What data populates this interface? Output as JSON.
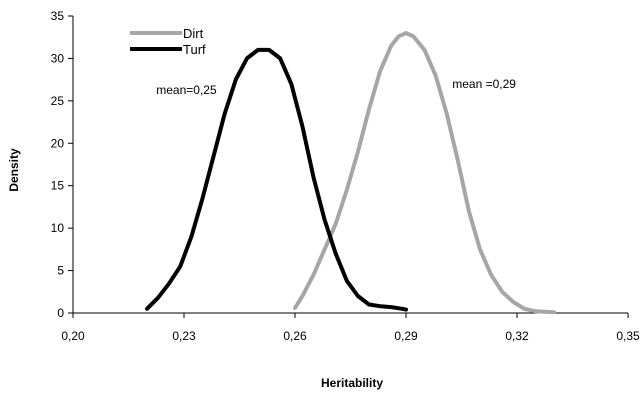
{
  "chart_data": {
    "type": "line",
    "title": "",
    "xlabel": "Heritability",
    "ylabel": "Density",
    "xlim": [
      0.2,
      0.35
    ],
    "ylim": [
      0,
      35
    ],
    "xticks": [
      "0,20",
      "0,23",
      "0,26",
      "0,29",
      "0,32",
      "0,35"
    ],
    "xtick_values": [
      0.2,
      0.23,
      0.26,
      0.29,
      0.32,
      0.35
    ],
    "yticks": [
      "0",
      "5",
      "10",
      "15",
      "20",
      "25",
      "30",
      "35"
    ],
    "ytick_values": [
      0,
      5,
      10,
      15,
      20,
      25,
      30,
      35
    ],
    "grid": false,
    "legend_position": "top-left",
    "series": [
      {
        "name": "Dirt",
        "color": "#a6a6a6",
        "x": [
          0.26,
          0.262,
          0.265,
          0.268,
          0.271,
          0.274,
          0.277,
          0.28,
          0.283,
          0.286,
          0.288,
          0.29,
          0.292,
          0.295,
          0.298,
          0.301,
          0.304,
          0.307,
          0.31,
          0.313,
          0.316,
          0.319,
          0.322,
          0.325,
          0.33
        ],
        "y": [
          0.6,
          2.0,
          4.5,
          7.5,
          10.5,
          14.5,
          19.0,
          24.0,
          28.5,
          31.5,
          32.6,
          33.0,
          32.6,
          31.0,
          28.0,
          23.5,
          18.0,
          12.0,
          7.5,
          4.5,
          2.5,
          1.3,
          0.5,
          0.2,
          0.1
        ]
      },
      {
        "name": "Turf",
        "color": "#000000",
        "x": [
          0.22,
          0.223,
          0.226,
          0.229,
          0.232,
          0.235,
          0.238,
          0.241,
          0.244,
          0.247,
          0.25,
          0.253,
          0.256,
          0.259,
          0.262,
          0.265,
          0.268,
          0.271,
          0.274,
          0.277,
          0.28,
          0.283,
          0.286,
          0.289,
          0.29
        ],
        "y": [
          0.5,
          1.8,
          3.5,
          5.5,
          9.0,
          13.5,
          18.5,
          23.5,
          27.5,
          30.0,
          31.0,
          31.0,
          30.0,
          27.0,
          22.0,
          16.0,
          11.0,
          7.0,
          3.8,
          2.0,
          1.0,
          0.8,
          0.7,
          0.5,
          0.4
        ]
      }
    ],
    "annotations": [
      {
        "text": "mean=0,25",
        "x": 0.2225,
        "y": 25.8
      },
      {
        "text": "mean =0,29",
        "x": 0.3025,
        "y": 26.5
      }
    ]
  }
}
